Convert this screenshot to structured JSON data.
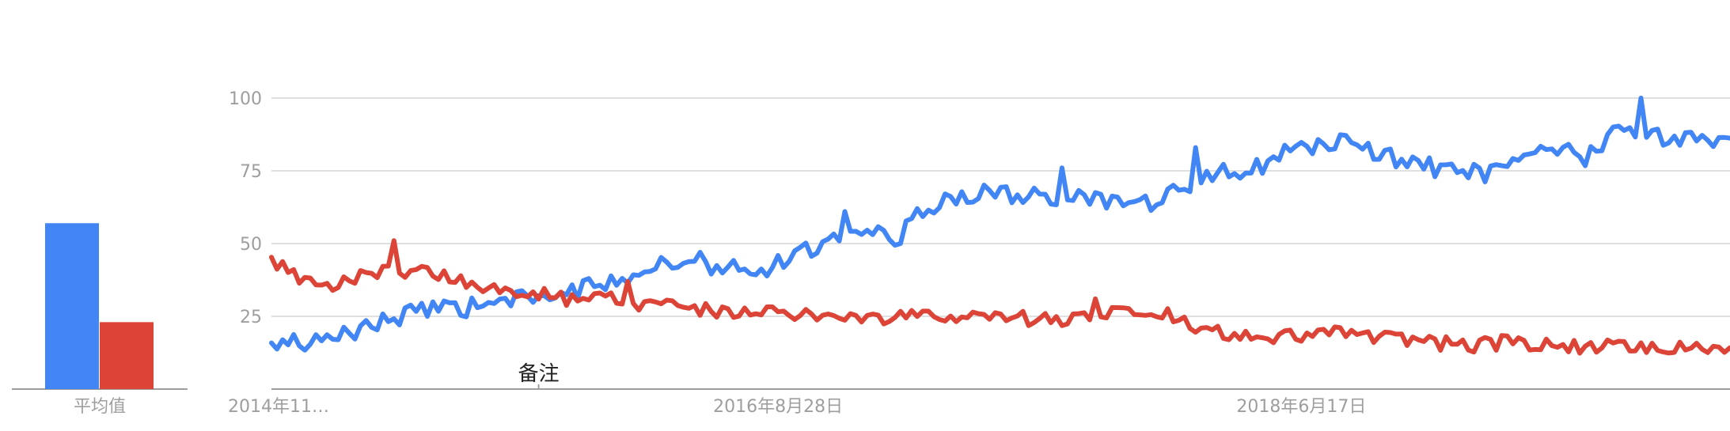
{
  "colors": {
    "series1": "#4285f4",
    "series2": "#db4437",
    "grid": "#e0e0e0",
    "axis_text": "#9e9e9e"
  },
  "average_panel": {
    "label": "平均值",
    "values": [
      57,
      23
    ]
  },
  "annotation": {
    "label": "备注",
    "date": "2015-11-01"
  },
  "chart_data": {
    "type": "line",
    "title": "",
    "xlabel": "",
    "ylabel": "",
    "ylim": [
      0,
      100
    ],
    "yticks": [
      25,
      50,
      75,
      100
    ],
    "grid": true,
    "x_tick_labels": [
      "2014年11…",
      "2016年8月28日",
      "2018年6月17日"
    ],
    "x_tick_dates": [
      "2014-11-30",
      "2016-08-28",
      "2018-06-17"
    ],
    "x_range": [
      "2014-11-30",
      "2019-12-08"
    ],
    "x_step": "weekly",
    "x_format": "YYYY-MM-DD",
    "series": [
      {
        "color": "#4285f4",
        "keypoints": [
          [
            "2014-11-30",
            14
          ],
          [
            "2014-12-21",
            17
          ],
          [
            "2015-01-11",
            15
          ],
          [
            "2015-02-15",
            17
          ],
          [
            "2015-03-29",
            22
          ],
          [
            "2015-05-10",
            25
          ],
          [
            "2015-06-21",
            27
          ],
          [
            "2015-08-02",
            28
          ],
          [
            "2015-09-13",
            30
          ],
          [
            "2015-10-25",
            31
          ],
          [
            "2015-12-06",
            33
          ],
          [
            "2016-01-17",
            36
          ],
          [
            "2016-02-28",
            40
          ],
          [
            "2016-04-10",
            43
          ],
          [
            "2016-05-22",
            43
          ],
          [
            "2016-07-03",
            42
          ],
          [
            "2016-08-14",
            42
          ],
          [
            "2016-09-25",
            46
          ],
          [
            "2016-11-06",
            53
          ],
          [
            "2016-12-18",
            56
          ],
          [
            "2017-01-22",
            50
          ],
          [
            "2017-02-19",
            60
          ],
          [
            "2017-04-02",
            66
          ],
          [
            "2017-05-14",
            67
          ],
          [
            "2017-06-25",
            67
          ],
          [
            "2017-08-06",
            66
          ],
          [
            "2017-09-17",
            65
          ],
          [
            "2017-10-29",
            64
          ],
          [
            "2017-12-10",
            63
          ],
          [
            "2018-01-21",
            70
          ],
          [
            "2018-03-04",
            74
          ],
          [
            "2018-04-15",
            75
          ],
          [
            "2018-05-27",
            81
          ],
          [
            "2018-07-08",
            84
          ],
          [
            "2018-08-19",
            85
          ],
          [
            "2018-09-30",
            80
          ],
          [
            "2018-11-11",
            77
          ],
          [
            "2018-12-23",
            75
          ],
          [
            "2019-02-03",
            74
          ],
          [
            "2019-03-17",
            77
          ],
          [
            "2019-04-28",
            83
          ],
          [
            "2019-06-09",
            79
          ],
          [
            "2019-07-21",
            89
          ],
          [
            "2019-09-01",
            87
          ],
          [
            "2019-10-13",
            86
          ],
          [
            "2019-11-24",
            85
          ],
          [
            "2019-12-08",
            88
          ]
        ],
        "peaks": [
          [
            "2015-06-21",
            30
          ],
          [
            "2016-05-22",
            47
          ],
          [
            "2016-11-20",
            61
          ],
          [
            "2017-08-20",
            76
          ],
          [
            "2018-02-04",
            83
          ],
          [
            "2019-08-18",
            100
          ]
        ]
      },
      {
        "color": "#db4437",
        "keypoints": [
          [
            "2014-11-30",
            43
          ],
          [
            "2014-12-21",
            41
          ],
          [
            "2015-01-11",
            36
          ],
          [
            "2015-02-15",
            35
          ],
          [
            "2015-03-29",
            40
          ],
          [
            "2015-05-10",
            41
          ],
          [
            "2015-06-21",
            40
          ],
          [
            "2015-08-02",
            37
          ],
          [
            "2015-09-13",
            35
          ],
          [
            "2015-10-25",
            33
          ],
          [
            "2015-12-06",
            31
          ],
          [
            "2016-01-17",
            32
          ],
          [
            "2016-02-28",
            30
          ],
          [
            "2016-04-10",
            28
          ],
          [
            "2016-05-22",
            27
          ],
          [
            "2016-07-03",
            27
          ],
          [
            "2016-08-14",
            26
          ],
          [
            "2016-09-25",
            26
          ],
          [
            "2016-11-06",
            25
          ],
          [
            "2016-12-18",
            25
          ],
          [
            "2017-01-29",
            25
          ],
          [
            "2017-03-12",
            25
          ],
          [
            "2017-04-23",
            26
          ],
          [
            "2017-06-04",
            25
          ],
          [
            "2017-07-16",
            24
          ],
          [
            "2017-08-27",
            23
          ],
          [
            "2017-10-08",
            25
          ],
          [
            "2017-11-19",
            27
          ],
          [
            "2017-12-31",
            26
          ],
          [
            "2018-02-11",
            20
          ],
          [
            "2018-03-25",
            18
          ],
          [
            "2018-05-06",
            18
          ],
          [
            "2018-06-17",
            18
          ],
          [
            "2018-07-29",
            19
          ],
          [
            "2018-09-09",
            18
          ],
          [
            "2018-10-21",
            17
          ],
          [
            "2018-12-02",
            16
          ],
          [
            "2019-01-13",
            15
          ],
          [
            "2019-02-24",
            16
          ],
          [
            "2019-04-07",
            15
          ],
          [
            "2019-05-19",
            14
          ],
          [
            "2019-06-30",
            15
          ],
          [
            "2019-08-11",
            15
          ],
          [
            "2019-09-22",
            14
          ],
          [
            "2019-11-03",
            13
          ],
          [
            "2019-12-08",
            12
          ]
        ],
        "peaks": [
          [
            "2015-05-03",
            51
          ],
          [
            "2016-02-21",
            37
          ],
          [
            "2017-10-01",
            31
          ]
        ]
      }
    ]
  }
}
